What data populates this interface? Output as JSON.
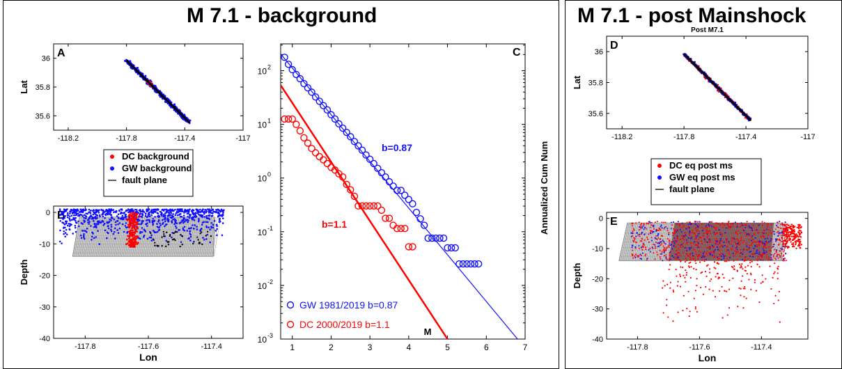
{
  "left_title": "M 7.1 - background",
  "right_title": "M 7.1 - post Mainshock",
  "colors": {
    "blue": "#1010ff",
    "red": "#ff0000",
    "black": "#000000",
    "mesh": "#777777"
  },
  "chart_data": [
    {
      "id": "A",
      "type": "scatter",
      "panel_label": "A",
      "xlabel": "",
      "ylabel": "Lat",
      "xlim": [
        -118.3,
        -117.0
      ],
      "ylim": [
        35.5,
        36.1
      ],
      "xticks": [
        -118.2,
        -117.8,
        -117.4,
        -117
      ],
      "xtick_labels": [
        "-118.2",
        "-117.8",
        "-117.4",
        "-117"
      ],
      "yticks": [
        35.6,
        35.8,
        36
      ],
      "ytick_labels": [
        "35.6",
        "35.8",
        "36"
      ],
      "series": [
        {
          "name": "DC background",
          "color": "red",
          "points": [
            [
              -117.63,
              35.77
            ],
            [
              -117.61,
              35.75
            ],
            [
              -117.64,
              35.79
            ],
            [
              -117.6,
              35.73
            ],
            [
              -117.62,
              35.76
            ],
            [
              -117.58,
              35.72
            ],
            [
              -117.65,
              35.8
            ]
          ]
        },
        {
          "name": "GW background",
          "color": "blue",
          "points": [
            [
              -117.82,
              35.99
            ],
            [
              -117.75,
              35.93
            ],
            [
              -117.68,
              35.85
            ],
            [
              -117.6,
              35.77
            ],
            [
              -117.52,
              35.68
            ],
            [
              -117.45,
              35.61
            ],
            [
              -117.39,
              35.55
            ]
          ]
        },
        {
          "name": "fault plane",
          "color": "black",
          "line": [
            [
              -117.79,
              35.98
            ],
            [
              -117.37,
              35.56
            ]
          ]
        }
      ],
      "legend": {
        "placement": "below",
        "entries": [
          "DC background",
          "GW background",
          "fault plane"
        ]
      }
    },
    {
      "id": "B",
      "type": "scatter",
      "panel_label": "B",
      "xlabel": "Lon",
      "ylabel": "Depth",
      "xlim": [
        -117.9,
        -117.3
      ],
      "ylim": [
        -40,
        2
      ],
      "xticks": [
        -117.8,
        -117.6,
        -117.4
      ],
      "xtick_labels": [
        "-117.8",
        "-117.6",
        "-117.4"
      ],
      "yticks": [
        0,
        -10,
        -20,
        -30,
        -40
      ],
      "ytick_labels": [
        "0",
        "-10",
        "-20",
        "-30",
        "-40"
      ]
    },
    {
      "id": "C",
      "type": "scatter",
      "panel_label": "C",
      "xlabel": "M",
      "ylabel": "Annualized Cum Num",
      "xlim": [
        0.7,
        7
      ],
      "ylim_log10": [
        -3,
        2.5
      ],
      "yscale": "log",
      "xticks": [
        1,
        2,
        3,
        4,
        5,
        6,
        7
      ],
      "xtick_labels": [
        "1",
        "2",
        "3",
        "4",
        "5",
        "6",
        "7"
      ],
      "ytick_exponents": [
        -3,
        -2,
        -1,
        0,
        1,
        2
      ],
      "ytick_labels": [
        "10",
        "10",
        "10",
        "10",
        "10",
        "10"
      ],
      "ytick_superscripts": [
        "-3",
        "-2",
        "-1",
        "0",
        "1",
        "2"
      ],
      "series": [
        {
          "name": "GW 1981/2019  b=0.87",
          "color": "blue",
          "x": [
            0.8,
            0.9,
            1.0,
            1.1,
            1.2,
            1.3,
            1.4,
            1.5,
            1.6,
            1.7,
            1.8,
            1.9,
            2.0,
            2.1,
            2.2,
            2.3,
            2.4,
            2.5,
            2.6,
            2.7,
            2.8,
            2.9,
            3.0,
            3.1,
            3.2,
            3.3,
            3.4,
            3.5,
            3.6,
            3.7,
            3.8,
            3.9,
            4.0,
            4.1,
            4.2,
            4.3,
            4.4,
            4.5,
            4.6,
            4.7,
            4.8,
            4.9,
            5.0,
            5.1,
            5.2,
            5.3,
            5.4,
            5.5,
            5.6,
            5.7,
            5.8
          ],
          "log10y": [
            2.25,
            2.12,
            2.02,
            1.93,
            1.85,
            1.76,
            1.68,
            1.6,
            1.51,
            1.43,
            1.35,
            1.27,
            1.18,
            1.1,
            1.01,
            0.93,
            0.85,
            0.77,
            0.68,
            0.6,
            0.52,
            0.43,
            0.35,
            0.27,
            0.18,
            0.1,
            0.02,
            -0.07,
            -0.15,
            -0.23,
            -0.23,
            -0.32,
            -0.4,
            -0.48,
            -0.64,
            -0.76,
            -0.88,
            -1.12,
            -1.12,
            -1.12,
            -1.12,
            -1.12,
            -1.3,
            -1.3,
            -1.3,
            -1.6,
            -1.6,
            -1.6,
            -1.6,
            -1.6,
            -1.6
          ]
        },
        {
          "name": "DC 2000/2019 b=1.1",
          "color": "red",
          "x": [
            0.8,
            0.9,
            1.0,
            1.1,
            1.2,
            1.3,
            1.4,
            1.5,
            1.6,
            1.7,
            1.8,
            1.9,
            2.0,
            2.1,
            2.2,
            2.3,
            2.4,
            2.5,
            2.6,
            2.7,
            2.8,
            2.9,
            3.0,
            3.1,
            3.2,
            3.3,
            3.4,
            3.5,
            3.6,
            3.7,
            3.8,
            3.9,
            4.0,
            4.1
          ],
          "log10y": [
            1.1,
            1.1,
            1.1,
            1.0,
            0.88,
            0.75,
            0.65,
            0.55,
            0.47,
            0.4,
            0.34,
            0.27,
            0.2,
            0.15,
            0.08,
            0.02,
            -0.12,
            -0.22,
            -0.34,
            -0.52,
            -0.52,
            -0.52,
            -0.52,
            -0.52,
            -0.52,
            -0.6,
            -0.75,
            -0.75,
            -0.88,
            -0.94,
            -0.94,
            -0.94,
            -1.28,
            -1.28
          ]
        }
      ],
      "fit_lines": [
        {
          "label": "b=0.87",
          "color": "blue",
          "a": 2.92,
          "b": 0.87
        },
        {
          "label": "b=1.1",
          "color": "red",
          "a": 2.5,
          "b": 1.1
        }
      ],
      "legend": {
        "placement": "bottom-left",
        "entries": [
          "GW 1981/2019  b=0.87",
          "DC 2000/2019 b=1.1"
        ]
      }
    },
    {
      "id": "D",
      "type": "scatter",
      "panel_label": "D",
      "title": "Post M7.1",
      "xlabel": "",
      "ylabel": "Lat",
      "xlim": [
        -118.3,
        -117.0
      ],
      "ylim": [
        35.5,
        36.1
      ],
      "xticks": [
        -118.2,
        -117.8,
        -117.4,
        -117
      ],
      "xtick_labels": [
        "-118.2",
        "-117.8",
        "-117.4",
        "-117"
      ],
      "yticks": [
        35.6,
        35.8,
        36
      ],
      "ytick_labels": [
        "35.6",
        "35.8",
        "36"
      ],
      "legend": {
        "placement": "below",
        "entries": [
          "DC eq post ms",
          "GW eq post ms",
          "fault plane"
        ]
      }
    },
    {
      "id": "E",
      "type": "scatter",
      "panel_label": "E",
      "xlabel": "Lon",
      "ylabel": "Depth",
      "xlim": [
        -117.9,
        -117.25
      ],
      "ylim": [
        -40,
        2
      ],
      "xticks": [
        -117.8,
        -117.6,
        -117.4
      ],
      "xtick_labels": [
        "-117.8",
        "-117.6",
        "-117.4"
      ],
      "yticks": [
        0,
        -10,
        -20,
        -30,
        -40
      ],
      "ytick_labels": [
        "0",
        "-10",
        "-20",
        "-30",
        "-40"
      ]
    }
  ]
}
